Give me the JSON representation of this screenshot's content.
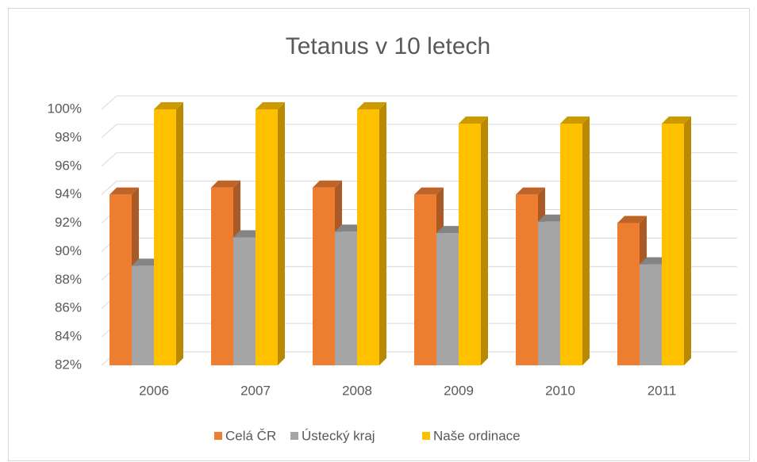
{
  "chart_data": {
    "type": "bar3d",
    "title": "Tetanus v 10 letech",
    "categories": [
      "2006",
      "2007",
      "2008",
      "2009",
      "2010",
      "2011"
    ],
    "series": [
      {
        "name": "Celá ČR",
        "color": "#ED7D31",
        "values": [
          94,
          94.5,
          94.5,
          94,
          94,
          92
        ]
      },
      {
        "name": "Ústecký kraj",
        "color": "#A5A5A5",
        "values": [
          89,
          91,
          91.4,
          91.3,
          92.1,
          89.1
        ]
      },
      {
        "name": "Naše ordinace",
        "color": "#FFC000",
        "values": [
          100,
          100,
          100,
          99,
          99,
          99
        ]
      }
    ],
    "ylim": [
      82,
      100
    ],
    "yticks": [
      {
        "value": 82,
        "label": "82%"
      },
      {
        "value": 84,
        "label": "84%"
      },
      {
        "value": 86,
        "label": "86%"
      },
      {
        "value": 88,
        "label": "88%"
      },
      {
        "value": 90,
        "label": "90%"
      },
      {
        "value": 92,
        "label": "92%"
      },
      {
        "value": 94,
        "label": "94%"
      },
      {
        "value": 96,
        "label": "96%"
      },
      {
        "value": 98,
        "label": "98%"
      },
      {
        "value": 100,
        "label": "100%"
      }
    ],
    "grid": true,
    "legend": "bottom"
  }
}
